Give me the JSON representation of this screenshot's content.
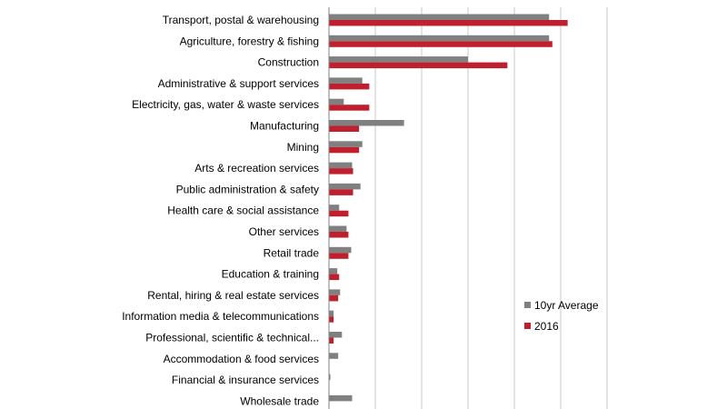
{
  "chart_data": {
    "type": "bar",
    "orientation": "horizontal",
    "title": "",
    "xlabel": "",
    "ylabel": "",
    "xlim": [
      0,
      6
    ],
    "grid": true,
    "legend_position": "bottom-right",
    "categories": [
      "Transport, postal & warehousing",
      "Agriculture, forestry & fishing",
      "Construction",
      "Administrative & support services",
      "Electricity, gas, water & waste services",
      "Manufacturing",
      "Mining",
      "Arts & recreation services",
      "Public administration & safety",
      "Health care & social assistance",
      "Other services",
      "Retail trade",
      "Education & training",
      "Rental, hiring & real estate services",
      "Information media & telecommunications",
      "Professional, scientific & technical...",
      "Accommodation & food services",
      "Financial & insurance services",
      "Wholesale trade"
    ],
    "series": [
      {
        "name": "10yr Average",
        "color": "#808080",
        "values": [
          4.75,
          4.75,
          3.0,
          0.72,
          0.32,
          1.62,
          0.72,
          0.5,
          0.68,
          0.22,
          0.38,
          0.48,
          0.18,
          0.24,
          0.1,
          0.28,
          0.2,
          0.03,
          0.5
        ]
      },
      {
        "name": "2016",
        "color": "#c0202e",
        "values": [
          5.15,
          4.82,
          3.85,
          0.87,
          0.87,
          0.65,
          0.65,
          0.52,
          0.52,
          0.42,
          0.42,
          0.42,
          0.22,
          0.2,
          0.1,
          0.1,
          0.0,
          0.0,
          0.0
        ]
      }
    ]
  }
}
